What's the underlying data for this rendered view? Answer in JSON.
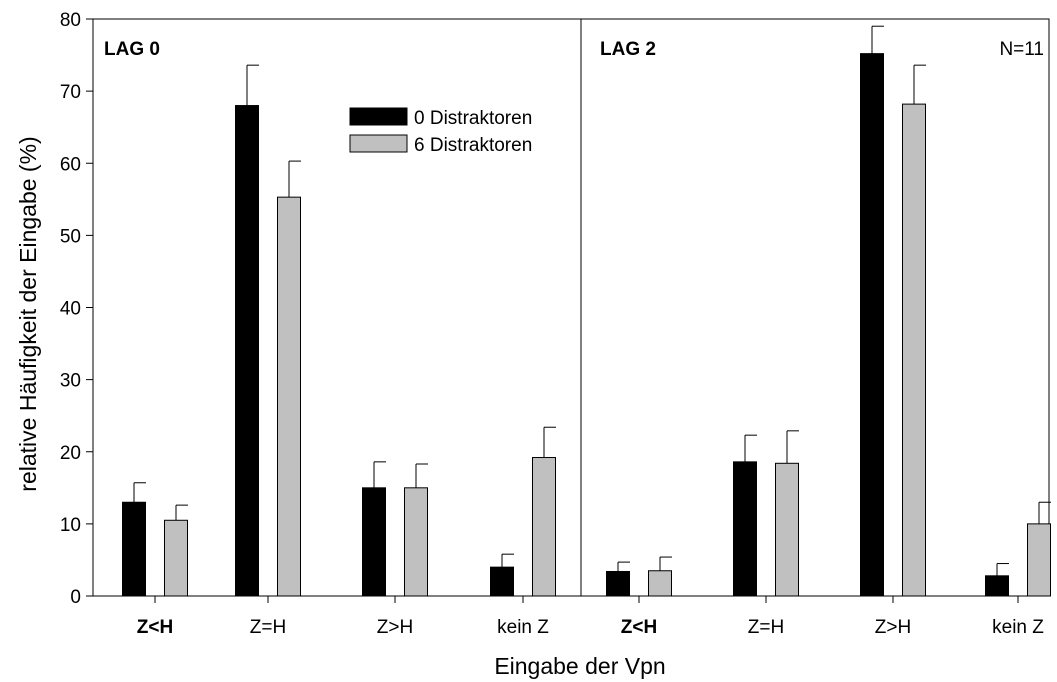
{
  "chart_data": {
    "type": "bar",
    "ylabel": "relative Häufigkeit der Eingabe (%)",
    "xlabel": "Eingabe der Vpn",
    "ylim": [
      0,
      80
    ],
    "yticks": [
      0,
      10,
      20,
      30,
      40,
      50,
      60,
      70,
      80
    ],
    "n_label": "N=11",
    "legend_position": "top-center of left panel",
    "series": [
      {
        "name": "0 Distraktoren",
        "color": "#000000"
      },
      {
        "name": "6 Distraktoren",
        "color": "#c0c0c0"
      }
    ],
    "panels": [
      {
        "label": "LAG 0",
        "categories": [
          "Z<H",
          "Z=H",
          "Z>H",
          "kein Z"
        ],
        "bold_categories": [
          "Z<H"
        ],
        "values": {
          "0 Distraktoren": [
            13.0,
            68.0,
            15.0,
            4.0
          ],
          "6 Distraktoren": [
            10.5,
            55.3,
            15.0,
            19.2
          ]
        },
        "errors": {
          "0 Distraktoren": [
            2.7,
            5.6,
            3.6,
            1.8
          ],
          "6 Distraktoren": [
            2.1,
            5.0,
            3.3,
            4.2
          ]
        }
      },
      {
        "label": "LAG 2",
        "categories": [
          "Z<H",
          "Z=H",
          "Z>H",
          "kein Z"
        ],
        "bold_categories": [
          "Z<H"
        ],
        "values": {
          "0 Distraktoren": [
            3.4,
            18.6,
            75.2,
            2.8
          ],
          "6 Distraktoren": [
            3.5,
            18.4,
            68.2,
            10.0
          ]
        },
        "errors": {
          "0 Distraktoren": [
            1.3,
            3.7,
            3.8,
            1.7
          ],
          "6 Distraktoren": [
            1.9,
            4.5,
            5.4,
            3.0
          ]
        }
      }
    ]
  }
}
